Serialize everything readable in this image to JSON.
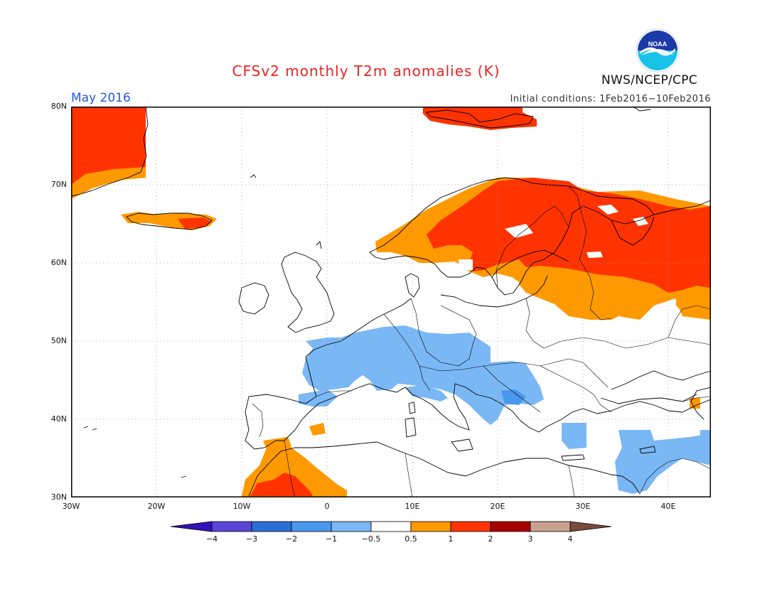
{
  "header": {
    "title": "CFSv2 monthly T2m anomalies (K)",
    "month": "May 2016",
    "initial_conditions": "Initial conditions: 1Feb2016−10Feb2016",
    "organization": "NWS/NCEP/CPC",
    "logo_text": "NOAA"
  },
  "map": {
    "lon_range": [
      -30,
      45
    ],
    "lat_range": [
      30,
      80
    ],
    "lat_labels": [
      "80N",
      "70N",
      "60N",
      "50N",
      "40N",
      "30N"
    ],
    "lon_labels": [
      "30W",
      "20W",
      "10W",
      "0",
      "10E",
      "20E",
      "30E",
      "40E"
    ],
    "gridlines": "dotted",
    "anomaly_regions": [
      {
        "name": "Greenland",
        "class": "1 to 2"
      },
      {
        "name": "Svalbard",
        "class": "1 to 2"
      },
      {
        "name": "Scandinavia",
        "class": "1 to 2"
      },
      {
        "name": "Northwest Russia",
        "class": "1 to 2"
      },
      {
        "name": "Baltic States / Belarus",
        "class": "0.5 to 1"
      },
      {
        "name": "Iceland",
        "class": "0.5 to 1"
      },
      {
        "name": "Morocco",
        "class": "0.5 to 2"
      },
      {
        "name": "France / Alps / Balkans",
        "class": "-1 to -0.5"
      },
      {
        "name": "Levant",
        "class": "-1 to -0.5"
      }
    ]
  },
  "colorbar": {
    "labels": [
      "−4",
      "−3",
      "−2",
      "−1",
      "−0.5",
      "0.5",
      "1",
      "2",
      "3",
      "4"
    ],
    "colors": [
      "#3311bb",
      "#5a46d6",
      "#2a6fd6",
      "#4a97ee",
      "#7ab8f5",
      "#ffffff",
      "#ff9900",
      "#ff3300",
      "#a80000",
      "#c8a090",
      "#7a4a3a"
    ]
  }
}
